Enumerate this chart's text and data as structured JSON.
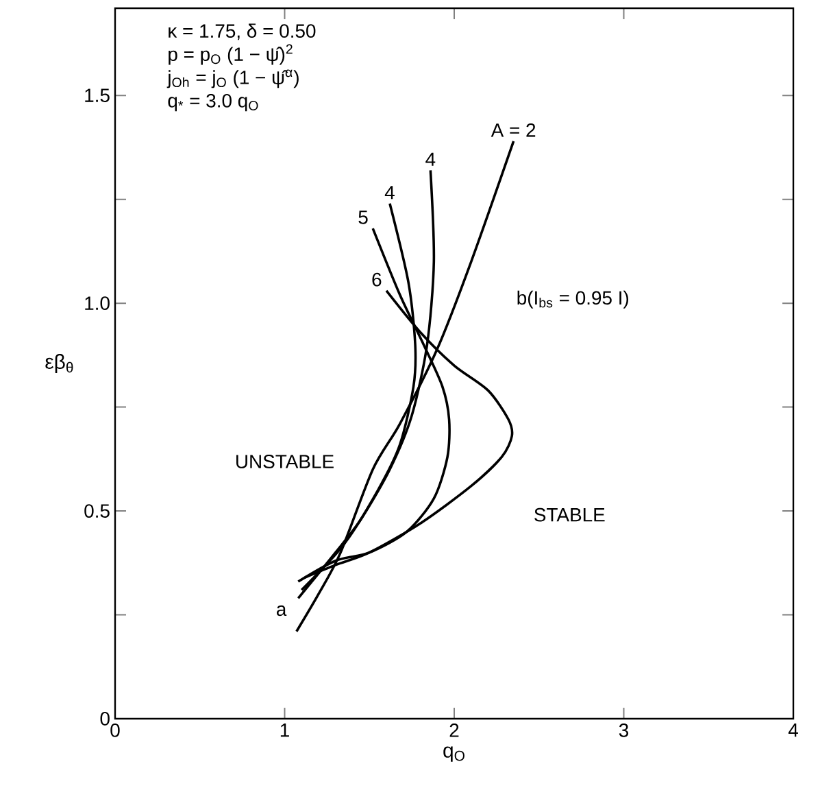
{
  "chart_data": {
    "type": "line",
    "xlabel": "q$_{O}$",
    "ylabel": "εβ$_{θ}$",
    "xlim": [
      0,
      4
    ],
    "ylim": [
      0,
      1.71
    ],
    "xticks": [
      0,
      1,
      2,
      3,
      4
    ],
    "yticks": [
      0,
      {
        "value": 0.25,
        "label": null
      },
      0.5,
      {
        "value": 0.75,
        "label": null
      },
      {
        "value": 1,
        "label": "1.0"
      },
      {
        "value": 1.25,
        "label": null
      },
      1.5
    ],
    "grid": false,
    "legend": false,
    "line_style": "solid",
    "series": [
      {
        "name": "A = 2",
        "color": "#000000",
        "x": [
          1.07,
          1.2,
          1.33,
          1.52,
          1.68,
          1.9,
          2.1,
          2.35
        ],
        "values": [
          0.21,
          0.3,
          0.4,
          0.6,
          0.71,
          0.89,
          1.1,
          1.39
        ]
      },
      {
        "name": "4",
        "color": "#000000",
        "x": [
          1.08,
          1.3,
          1.45,
          1.62,
          1.75,
          1.84,
          1.88,
          1.86
        ],
        "values": [
          0.29,
          0.4,
          0.48,
          0.6,
          0.73,
          0.9,
          1.1,
          1.32
        ]
      },
      {
        "name": "4",
        "color": "#000000",
        "x": [
          1.1,
          1.35,
          1.55,
          1.68,
          1.76,
          1.77,
          1.73,
          1.62
        ],
        "values": [
          0.31,
          0.42,
          0.55,
          0.66,
          0.8,
          0.9,
          1.05,
          1.24
        ]
      },
      {
        "name": "5",
        "color": "#000000",
        "x": [
          1.08,
          1.3,
          1.5,
          1.72,
          1.88,
          1.96,
          1.97,
          1.93,
          1.82,
          1.68,
          1.52
        ],
        "values": [
          0.33,
          0.38,
          0.4,
          0.45,
          0.53,
          0.63,
          0.72,
          0.8,
          0.9,
          1.02,
          1.18
        ]
      },
      {
        "name": "6",
        "color": "#000000",
        "x": [
          1.12,
          1.3,
          1.5,
          1.8,
          2.1,
          2.28,
          2.34,
          2.32,
          2.2,
          2.0,
          1.8,
          1.6
        ],
        "values": [
          0.34,
          0.37,
          0.4,
          0.47,
          0.56,
          0.63,
          0.68,
          0.72,
          0.79,
          0.85,
          0.93,
          1.03
        ]
      }
    ],
    "annotations": [
      "κ = 1.75, δ = 0.50",
      "p = p$_{O}$ (1 − ψ̂)$^{2}$",
      "j$_{Oh}$ = j$_{O}$ (1 − ψ̂$^{α}$)",
      "q$_{*}$ = 3.0 q$_{O}$",
      "a",
      "b(I$_{bs}$ = 0.95 I)",
      "UNSTABLE",
      "STABLE"
    ]
  }
}
